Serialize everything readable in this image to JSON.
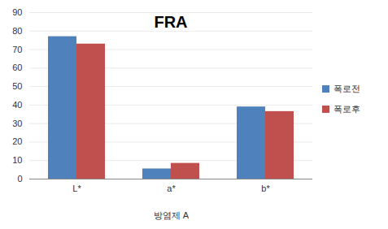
{
  "chart_data": {
    "type": "bar",
    "title": "FRA",
    "x_label": "방염제 A",
    "categories": [
      "L*",
      "a*",
      "b*"
    ],
    "series": [
      {
        "name": "폭로전",
        "color": "#4f81bd",
        "values": [
          77,
          5.5,
          39
        ]
      },
      {
        "name": "폭로후",
        "color": "#c0504d",
        "values": [
          73,
          8.5,
          36.5
        ]
      }
    ],
    "ylim": [
      0,
      90
    ],
    "yticks": [
      0,
      10,
      20,
      30,
      40,
      50,
      60,
      70,
      80,
      90
    ],
    "grid": true,
    "legend": "right"
  }
}
